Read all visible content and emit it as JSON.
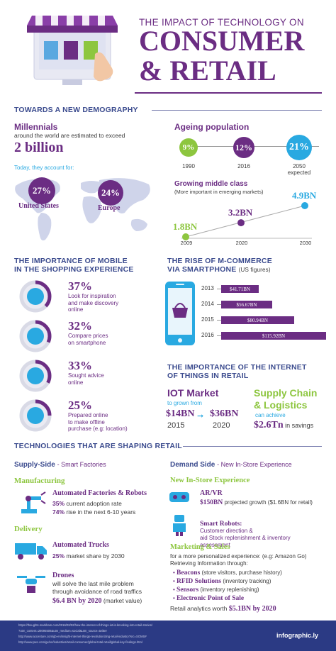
{
  "header": {
    "pretitle": "THE IMPACT OF TECHNOLOGY ON",
    "title1": "CONSUMER",
    "title2": "& RETAIL"
  },
  "demography": {
    "heading": "TOWARDS A NEW DEMOGRAPHY",
    "millennials_title": "Millennials",
    "millennials_sub": "around the world are estimated to exceed",
    "millennials_value": "2 billion",
    "account_for": "Today, they account for:",
    "us_pct": "27%",
    "us_label": "United States",
    "eu_pct": "24%",
    "eu_label": "Europe",
    "ageing_title": "Ageing population",
    "ageing": [
      {
        "pct": "9%",
        "year": "1990"
      },
      {
        "pct": "12%",
        "year": "2016"
      },
      {
        "pct": "21%",
        "year": "2050\nexpected"
      }
    ],
    "middle_title": "Growing middle class",
    "middle_sub": "(More important in emerging markets)",
    "middle_points": [
      {
        "value": "1.8BN",
        "year": "2009"
      },
      {
        "value": "3.2BN",
        "year": "2020"
      },
      {
        "value": "4.9BN",
        "year": "2030"
      }
    ]
  },
  "mobile": {
    "heading1": "THE IMPORTANCE OF MOBILE",
    "heading2": "IN THE SHOPPING EXPERIENCE",
    "items": [
      {
        "pct": "37%",
        "text": "Look for inspiration\nand make discovery\nonline",
        "fill": 0.37
      },
      {
        "pct": "32%",
        "text": "Compare prices\non smartphone",
        "fill": 0.32
      },
      {
        "pct": "33%",
        "text": "Sought advice\nonline",
        "fill": 0.33
      },
      {
        "pct": "25%",
        "text": "Prepared online\nto make offline\npurchase (e.g: location)",
        "fill": 0.25
      }
    ]
  },
  "mcommerce": {
    "heading1": "THE RISE OF M-COMMERCE",
    "heading2": "VIA SMARTPHONE",
    "heading_note": "(US figures)",
    "bars": [
      {
        "year": "2013",
        "value": "$41.71BN",
        "amount": 41.71
      },
      {
        "year": "2014",
        "value": "$56.67BN",
        "amount": 56.67
      },
      {
        "year": "2015",
        "value": "$80.94BN",
        "amount": 80.94
      },
      {
        "year": "2016",
        "value": "$115.92BN",
        "amount": 115.92
      }
    ]
  },
  "iot": {
    "heading1": "THE IMPORTANCE OF THE INTERNET",
    "heading2": "OF THINGS IN RETAIL",
    "market_title": "IOT Market",
    "market_sub": "to grown from",
    "from_value": "$14BN",
    "from_year": "2015",
    "arrow": "➞",
    "to_value": "$36BN",
    "to_year": "2020",
    "supply_title1": "Supply Chain",
    "supply_title2": "& Logistics",
    "supply_sub": "can achieve",
    "savings_value": "$2.6Tn",
    "savings_text": "in savings"
  },
  "tech": {
    "heading": "TECHNOLOGIES THAT ARE SHAPING RETAIL",
    "supply_side": "Supply-Side",
    "supply_side_sub": "- Smart Factories",
    "demand_side": "Demand Side",
    "demand_side_sub": "- New In-Store Experience",
    "manufacturing": "Manufacturing",
    "auto_factories": "Automated Factories & Robots",
    "adoption_pct": "35%",
    "adoption_text": "current adoption rate",
    "rise_pct": "74%",
    "rise_text": "rise in the next 6-10 years",
    "delivery": "Delivery",
    "auto_trucks": "Automated Trucks",
    "trucks_pct": "25%",
    "trucks_text": "market share by 2030",
    "drones": "Drones",
    "drones_text": "will solve the last mile problem\nthrough avoidance of road traffics",
    "drones_value": "$6.4 BN by 2020",
    "drones_note": "(market value)",
    "instore": "New In-Store Experience",
    "arvr": "AR/VR",
    "arvr_value": "$150BN",
    "arvr_text": "projected growth ($1.6BN for retail)",
    "robots": "Smart Robots:",
    "robots_text": "Customer direction &\naid Stock replenishment & inventory\nassessment",
    "marketing": "Marketing & Sales",
    "marketing_text": "for a more personalized experience: (e.g: Amazon Go)\nRetrieving Information through:",
    "bullets": [
      {
        "b": "Beacons",
        "t": "(store visitors, purchase history)"
      },
      {
        "b": "RFID Solutions",
        "t": "(inventory tracking)"
      },
      {
        "b": "Sensors",
        "t": "(inventory replenishing)"
      },
      {
        "b": "Electronic Point of Sale",
        "t": ""
      }
    ],
    "analytics": "Retail analytics worth",
    "analytics_value": "$5.1BN by 2020"
  },
  "footer": {
    "sources": [
      "https://thoughts.markham.com/2016/03/02/how-the-internet-of-things-iot-is-knocking-into-retail-stories/",
      "?utm_content=28095508&utm_medium=social&utm_source=twitter",
      "http://www.accenture.com/gb-en/insight-internet-things-revolutionizing-retail-industry?src=SOMS#",
      "http://www.pwc.com/gx/en/industries/retail-consumer/global-total-retail/global-key-findings.html"
    ],
    "brand": "infographic.ly"
  },
  "colors": {
    "purple": "#6b2d83",
    "green": "#8dc63f",
    "blue": "#29a9e1",
    "navy": "#3b4b8e",
    "footer": "#2b3a84"
  }
}
